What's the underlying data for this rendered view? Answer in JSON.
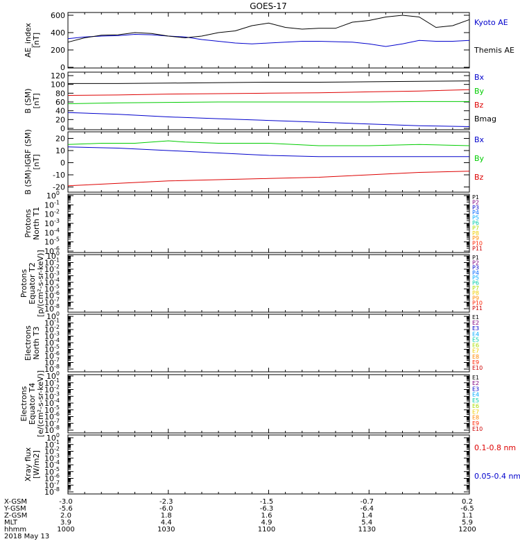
{
  "title": "GOES-17",
  "chart_data": [
    {
      "type": "line",
      "ylabel": [
        "AE_index",
        "[nT]"
      ],
      "ylim": [
        0,
        600
      ],
      "yticks": [
        0,
        200,
        400,
        600
      ],
      "series": [
        {
          "name": "Kyoto AE",
          "color": "#0000cc",
          "x": [
            1000,
            1005,
            1010,
            1015,
            1020,
            1025,
            1030,
            1035,
            1040,
            1045,
            1050,
            1055,
            1100,
            1105,
            1110,
            1115,
            1120,
            1125,
            1130,
            1135,
            1140,
            1145,
            1150,
            1155,
            1200
          ],
          "y": [
            330,
            350,
            360,
            365,
            380,
            375,
            360,
            350,
            320,
            300,
            280,
            270,
            280,
            290,
            300,
            300,
            295,
            290,
            270,
            240,
            270,
            310,
            300,
            300,
            310
          ]
        },
        {
          "name": "Themis AE",
          "color": "#000000",
          "x": [
            1000,
            1005,
            1010,
            1015,
            1020,
            1025,
            1030,
            1035,
            1040,
            1045,
            1050,
            1055,
            1100,
            1105,
            1110,
            1115,
            1120,
            1125,
            1130,
            1135,
            1140,
            1145,
            1150,
            1155,
            1200
          ],
          "y": [
            290,
            340,
            370,
            375,
            400,
            390,
            360,
            340,
            360,
            400,
            420,
            480,
            510,
            460,
            440,
            450,
            450,
            520,
            540,
            580,
            600,
            580,
            460,
            480,
            550
          ]
        }
      ]
    },
    {
      "type": "line",
      "ylabel": [
        "B (SM)",
        "[nT]"
      ],
      "ylim": [
        0,
        120
      ],
      "yticks": [
        0,
        20,
        40,
        60,
        80,
        100,
        120
      ],
      "series": [
        {
          "name": "Bx",
          "color": "#0000cc",
          "x": [
            1000,
            1015,
            1030,
            1045,
            1100,
            1115,
            1130,
            1145,
            1200
          ],
          "y": [
            36,
            32,
            26,
            22,
            18,
            14,
            10,
            6,
            4
          ]
        },
        {
          "name": "By",
          "color": "#00cc00",
          "x": [
            1000,
            1015,
            1030,
            1045,
            1100,
            1115,
            1130,
            1145,
            1200
          ],
          "y": [
            56,
            58,
            59,
            60,
            60,
            60,
            60,
            61,
            61
          ]
        },
        {
          "name": "Bz",
          "color": "#dd0000",
          "x": [
            1000,
            1015,
            1030,
            1045,
            1100,
            1115,
            1130,
            1145,
            1200
          ],
          "y": [
            75,
            76,
            78,
            79,
            80,
            81,
            83,
            85,
            88
          ]
        },
        {
          "name": "Bmag",
          "color": "#000000",
          "x": [
            1000,
            1015,
            1030,
            1045,
            1100,
            1115,
            1130,
            1145,
            1200
          ],
          "y": [
            102,
            102,
            103,
            104,
            105,
            105,
            106,
            107,
            108
          ]
        }
      ]
    },
    {
      "type": "line",
      "ylabel": [
        "B (SM)-IGRF (SM)",
        "[nT]"
      ],
      "ylim": [
        -22,
        22
      ],
      "yticks": [
        -20,
        -10,
        0,
        10,
        20
      ],
      "series": [
        {
          "name": "Bx",
          "color": "#0000cc",
          "x": [
            1000,
            1015,
            1030,
            1045,
            1100,
            1115,
            1130,
            1145,
            1200
          ],
          "y": [
            13,
            12,
            10,
            8,
            6,
            5,
            5,
            5,
            5
          ]
        },
        {
          "name": "By",
          "color": "#00cc00",
          "x": [
            1000,
            1010,
            1020,
            1030,
            1035,
            1045,
            1100,
            1115,
            1130,
            1145,
            1200
          ],
          "y": [
            15,
            16,
            16,
            18,
            17,
            16,
            16,
            14,
            14,
            15,
            14
          ]
        },
        {
          "name": "Bz",
          "color": "#dd0000",
          "x": [
            1000,
            1015,
            1030,
            1045,
            1100,
            1115,
            1130,
            1145,
            1200
          ],
          "y": [
            -19,
            -17,
            -15,
            -14,
            -13,
            -12,
            -10,
            -8,
            -7
          ]
        }
      ]
    },
    {
      "type": "line",
      "ylabel": [
        "Protons",
        "North T1"
      ],
      "ylog": true,
      "yticks_text": [
        "10^0",
        "10^-1",
        "10^-2",
        "10^-3",
        "10^-4",
        "10^-5",
        "10^-6"
      ],
      "legend": [
        "P1",
        "P2",
        "P3",
        "P4",
        "P5",
        "P6",
        "P7",
        "P8",
        "P9",
        "P10",
        "P11"
      ],
      "series": []
    },
    {
      "type": "line",
      "ylabel": [
        "Protons",
        "Equator T2",
        "[p/(cm²-s-sr-keV)]"
      ],
      "ylog": true,
      "yticks_text": [
        "10^0",
        "10^-1",
        "10^-2",
        "10^-3",
        "10^-4",
        "10^-5",
        "10^-6",
        "10^-7",
        "10^-8"
      ],
      "legend": [
        "P1",
        "P2",
        "P3",
        "P4",
        "P5",
        "P6",
        "P7",
        "P8",
        "P9",
        "P10",
        "P11"
      ],
      "series": []
    },
    {
      "type": "line",
      "ylabel": [
        "Electrons",
        "North T3"
      ],
      "ylog": true,
      "yticks_text": [
        "10^0",
        "10^-1",
        "10^-2",
        "10^-3",
        "10^-4",
        "10^-5",
        "10^-6",
        "10^-7",
        "10^-8"
      ],
      "legend": [
        "E1",
        "E2",
        "E3",
        "E4",
        "E5",
        "E6",
        "E7",
        "E8",
        "E9",
        "E10"
      ],
      "series": []
    },
    {
      "type": "line",
      "ylabel": [
        "Electrons",
        "Equator T4",
        "[e/(cm²-s-sr-keV)]"
      ],
      "ylog": true,
      "yticks_text": [
        "10^0",
        "10^-1",
        "10^-2",
        "10^-3",
        "10^-4",
        "10^-5",
        "10^-6",
        "10^-7",
        "10^-8"
      ],
      "legend": [
        "E1",
        "E2",
        "E3",
        "E4",
        "E5",
        "E6",
        "E7",
        "E8",
        "E9",
        "E10"
      ],
      "series": []
    },
    {
      "type": "line",
      "ylabel": [
        "Xray flux",
        "[W/m2]"
      ],
      "ylog": true,
      "yticks_text": [
        "10^0",
        "10^-1",
        "10^-2",
        "10^-3",
        "10^-4",
        "10^-5",
        "10^-6",
        "10^-7",
        "10^-8"
      ],
      "legend": [
        "0.1-0.8 nm",
        "0.05-0.4 nm"
      ],
      "legend_colors": [
        "#dd0000",
        "#0000cc"
      ],
      "series": []
    }
  ],
  "colors": {
    "proton_channels": [
      "#000000",
      "#800080",
      "#0000cc",
      "#0066ff",
      "#00aaff",
      "#00ccaa",
      "#aadd00",
      "#eecc00",
      "#ff8800",
      "#ff2200",
      "#cc0000"
    ],
    "electron_channels": [
      "#000000",
      "#800080",
      "#0000cc",
      "#00aaff",
      "#00ccaa",
      "#aadd00",
      "#eecc00",
      "#ff8800",
      "#ff2200",
      "#cc0000"
    ],
    "ae": {
      "Kyoto AE": "#0000cc",
      "Themis AE": "#000000"
    },
    "b": {
      "Bx": "#0000cc",
      "By": "#00cc00",
      "Bz": "#dd0000",
      "Bmag": "#000000"
    }
  },
  "x_axis": {
    "range": [
      1000,
      1200
    ],
    "tick_positions": [
      1000,
      1030,
      1100,
      1130,
      1200
    ],
    "rows": [
      {
        "label": "X-GSM",
        "values": [
          "-3.0",
          "-2.3",
          "-1.5",
          "-0.7",
          "0.2"
        ]
      },
      {
        "label": "Y-GSM",
        "values": [
          "-5.6",
          "-6.0",
          "-6.3",
          "-6.4",
          "-6.5"
        ]
      },
      {
        "label": "Z-GSM",
        "values": [
          "2.0",
          "1.8",
          "1.6",
          "1.4",
          "1.1"
        ]
      },
      {
        "label": "MLT",
        "values": [
          "3.9",
          "4.4",
          "4.9",
          "5.4",
          "5.9"
        ]
      },
      {
        "label": "hhmm",
        "values": [
          "1000",
          "1030",
          "1100",
          "1130",
          "1200"
        ]
      }
    ],
    "date": "2018 May 13"
  }
}
